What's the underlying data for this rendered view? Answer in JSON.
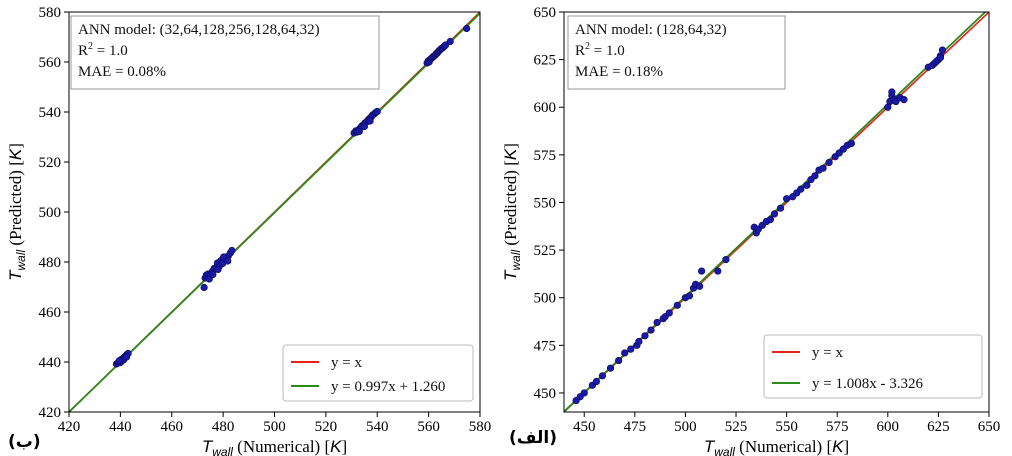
{
  "colors": {
    "identity": "#e8221b",
    "fit": "#2a8a1a",
    "points": "#1a1aa8",
    "point_edge": "#0a0a55"
  },
  "chart_data": [
    {
      "type": "scatter",
      "panel_tag": "(ب)",
      "xlabel_sym": "T",
      "xlabel_sub": "wall",
      "xlabel_rest": " (Numerical) [",
      "xlabel_unit": "K",
      "xlabel_end": "]",
      "ylabel_sym": "T",
      "ylabel_sub": "wall",
      "ylabel_rest": " (Predicted) [",
      "ylabel_unit": "K",
      "ylabel_end": "]",
      "xlim": [
        420,
        580
      ],
      "ylim": [
        420,
        580
      ],
      "xticks": [
        420,
        440,
        460,
        480,
        500,
        520,
        540,
        560,
        580
      ],
      "yticks": [
        420,
        440,
        460,
        480,
        500,
        520,
        540,
        560,
        580
      ],
      "annotation": {
        "model": "ANN model: (32,64,128,256,128,64,32)",
        "r2_prefix": "R",
        "r2_sup": "2",
        "r2_value": " = 1.0",
        "mae": "MAE = 0.08%"
      },
      "legend": {
        "position": "lower-right",
        "identity_label": "y = x",
        "fit_label": "y = 0.997x + 1.260"
      },
      "fit": {
        "slope": 0.997,
        "intercept": 1.26
      },
      "points": [
        [
          438.5,
          439.2
        ],
        [
          439.0,
          439.6
        ],
        [
          439.4,
          440.1
        ],
        [
          439.8,
          440.4
        ],
        [
          440.2,
          440.9
        ],
        [
          440.6,
          441.0
        ],
        [
          441.0,
          441.4
        ],
        [
          441.4,
          441.8
        ],
        [
          441.8,
          442.2
        ],
        [
          442.2,
          442.4
        ],
        [
          442.6,
          443.0
        ],
        [
          443.0,
          443.4
        ],
        [
          440.0,
          439.8
        ],
        [
          441.2,
          440.8
        ],
        [
          442.4,
          442.0
        ],
        [
          439.6,
          440.5
        ],
        [
          472.6,
          469.8
        ],
        [
          473.0,
          473.6
        ],
        [
          473.5,
          474.8
        ],
        [
          474.2,
          475.2
        ],
        [
          475.0,
          474.6
        ],
        [
          475.8,
          476.2
        ],
        [
          476.5,
          477.4
        ],
        [
          477.2,
          477.8
        ],
        [
          477.8,
          479.6
        ],
        [
          478.5,
          478.2
        ],
        [
          479.2,
          480.6
        ],
        [
          479.8,
          479.4
        ],
        [
          480.5,
          481.8
        ],
        [
          481.2,
          481.0
        ],
        [
          482.0,
          482.4
        ],
        [
          482.8,
          483.6
        ],
        [
          483.4,
          484.6
        ],
        [
          474.6,
          473.2
        ],
        [
          476.0,
          475.0
        ],
        [
          478.0,
          477.0
        ],
        [
          480.2,
          482.0
        ],
        [
          481.8,
          480.4
        ],
        [
          531.0,
          531.6
        ],
        [
          531.6,
          532.4
        ],
        [
          532.2,
          532.0
        ],
        [
          532.8,
          533.0
        ],
        [
          533.4,
          533.6
        ],
        [
          534.0,
          534.4
        ],
        [
          534.6,
          534.8
        ],
        [
          535.2,
          535.6
        ],
        [
          535.8,
          536.0
        ],
        [
          536.4,
          536.8
        ],
        [
          537.0,
          537.4
        ],
        [
          537.6,
          538.0
        ],
        [
          538.2,
          538.8
        ],
        [
          538.8,
          539.2
        ],
        [
          539.4,
          539.8
        ],
        [
          540.0,
          540.2
        ],
        [
          533.0,
          532.2
        ],
        [
          535.0,
          534.2
        ],
        [
          537.2,
          536.4
        ],
        [
          559.4,
          559.6
        ],
        [
          559.8,
          560.4
        ],
        [
          560.2,
          560.0
        ],
        [
          560.6,
          561.0
        ],
        [
          561.0,
          561.4
        ],
        [
          561.4,
          561.8
        ],
        [
          561.8,
          562.2
        ],
        [
          562.2,
          562.4
        ],
        [
          562.6,
          562.8
        ],
        [
          563.0,
          563.4
        ],
        [
          563.4,
          563.6
        ],
        [
          563.8,
          564.2
        ],
        [
          564.2,
          564.6
        ],
        [
          564.6,
          565.0
        ],
        [
          565.0,
          565.4
        ],
        [
          565.4,
          565.6
        ],
        [
          565.8,
          566.0
        ],
        [
          566.2,
          566.4
        ],
        [
          566.6,
          566.8
        ],
        [
          568.4,
          568.2
        ],
        [
          574.8,
          573.4
        ]
      ]
    },
    {
      "type": "scatter",
      "panel_tag": "(الف)",
      "xlabel_sym": "T",
      "xlabel_sub": "wall",
      "xlabel_rest": " (Numerical) [",
      "xlabel_unit": "K",
      "xlabel_end": "]",
      "ylabel_sym": "T",
      "ylabel_sub": "wall",
      "ylabel_rest": " (Predicted) [",
      "ylabel_unit": "K",
      "ylabel_end": "]",
      "xlim": [
        440,
        650
      ],
      "ylim": [
        440,
        650
      ],
      "xticks": [
        450,
        475,
        500,
        525,
        550,
        575,
        600,
        625,
        650
      ],
      "yticks": [
        450,
        475,
        500,
        525,
        550,
        575,
        600,
        625,
        650
      ],
      "annotation": {
        "model": "ANN model: (128,64,32)",
        "r2_prefix": "R",
        "r2_sup": "2",
        "r2_value": " = 1.0",
        "mae": "MAE = 0.18%"
      },
      "legend": {
        "position": "lower-right",
        "identity_label": "y = x",
        "fit_label": "y = 1.008x - 3.326"
      },
      "fit": {
        "slope": 1.008,
        "intercept": -3.326
      },
      "points": [
        [
          446,
          446
        ],
        [
          448,
          448
        ],
        [
          450,
          450
        ],
        [
          454,
          454
        ],
        [
          456,
          456
        ],
        [
          459,
          459
        ],
        [
          463,
          463
        ],
        [
          467,
          467
        ],
        [
          470,
          471
        ],
        [
          473,
          473
        ],
        [
          476,
          475
        ],
        [
          477,
          477
        ],
        [
          480,
          480
        ],
        [
          483,
          483
        ],
        [
          486,
          487
        ],
        [
          489,
          489
        ],
        [
          490,
          490
        ],
        [
          492,
          492
        ],
        [
          496,
          496
        ],
        [
          500,
          500
        ],
        [
          502,
          501
        ],
        [
          504,
          505
        ],
        [
          505,
          507
        ],
        [
          507,
          506
        ],
        [
          508,
          514
        ],
        [
          516,
          514
        ],
        [
          520,
          520
        ],
        [
          534,
          537
        ],
        [
          535,
          534
        ],
        [
          536,
          536
        ],
        [
          538,
          538
        ],
        [
          540,
          540
        ],
        [
          542,
          541
        ],
        [
          544,
          544
        ],
        [
          547,
          547
        ],
        [
          550,
          552
        ],
        [
          553,
          553
        ],
        [
          555,
          555
        ],
        [
          557,
          557
        ],
        [
          560,
          559
        ],
        [
          562,
          562
        ],
        [
          564,
          564
        ],
        [
          566,
          567
        ],
        [
          568,
          568
        ],
        [
          571,
          571
        ],
        [
          574,
          574
        ],
        [
          576,
          576
        ],
        [
          578,
          578
        ],
        [
          580,
          580
        ],
        [
          582,
          581
        ],
        [
          600,
          600
        ],
        [
          601,
          603
        ],
        [
          602,
          606
        ],
        [
          603,
          604
        ],
        [
          604,
          603
        ],
        [
          606,
          605
        ],
        [
          608,
          604
        ],
        [
          602,
          608
        ],
        [
          620,
          621
        ],
        [
          622,
          622
        ],
        [
          623,
          623
        ],
        [
          624,
          624
        ],
        [
          625,
          625
        ],
        [
          626,
          627
        ],
        [
          627,
          630
        ],
        [
          626,
          626
        ]
      ]
    }
  ]
}
